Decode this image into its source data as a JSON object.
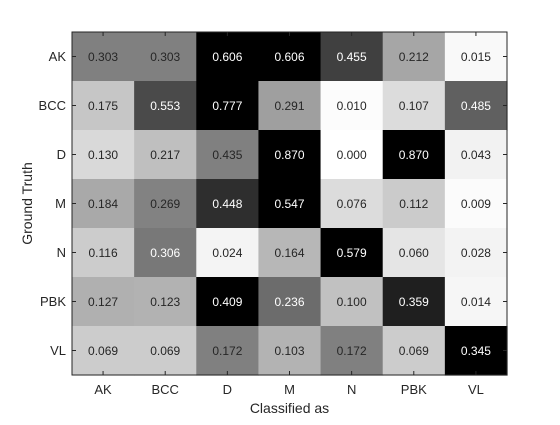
{
  "chart_data": {
    "type": "heatmap",
    "title": "",
    "xlabel": "Classified as",
    "ylabel": "Ground Truth",
    "x_categories": [
      "AK",
      "BCC",
      "D",
      "M",
      "N",
      "PBK",
      "VL"
    ],
    "y_categories": [
      "AK",
      "BCC",
      "D",
      "M",
      "N",
      "PBK",
      "VL"
    ],
    "colormap": "gray-reversed",
    "values": [
      [
        0.303,
        0.303,
        0.606,
        0.606,
        0.455,
        0.212,
        0.015
      ],
      [
        0.175,
        0.553,
        0.777,
        0.291,
        0.01,
        0.107,
        0.485
      ],
      [
        0.13,
        0.217,
        0.435,
        0.87,
        0.0,
        0.87,
        0.043
      ],
      [
        0.184,
        0.269,
        0.448,
        0.547,
        0.076,
        0.112,
        0.009
      ],
      [
        0.116,
        0.306,
        0.024,
        0.164,
        0.579,
        0.06,
        0.028
      ],
      [
        0.127,
        0.123,
        0.409,
        0.236,
        0.1,
        0.359,
        0.014
      ],
      [
        0.069,
        0.069,
        0.172,
        0.103,
        0.172,
        0.069,
        0.345
      ]
    ],
    "value_labels": [
      [
        "0.303",
        "0.303",
        "0.606",
        "0.606",
        "0.455",
        "0.212",
        "0.015"
      ],
      [
        "0.175",
        "0.553",
        "0.777",
        "0.291",
        "0.010",
        "0.107",
        "0.485"
      ],
      [
        "0.130",
        "0.217",
        "0.435",
        "0.870",
        "0.000",
        "0.870",
        "0.043"
      ],
      [
        "0.184",
        "0.269",
        "0.448",
        "0.547",
        "0.076",
        "0.112",
        "0.009"
      ],
      [
        "0.116",
        "0.306",
        "0.024",
        "0.164",
        "0.579",
        "0.060",
        "0.028"
      ],
      [
        "0.127",
        "0.123",
        "0.409",
        "0.236",
        "0.100",
        "0.359",
        "0.014"
      ],
      [
        "0.069",
        "0.069",
        "0.172",
        "0.103",
        "0.172",
        "0.069",
        "0.345"
      ]
    ],
    "grid": false,
    "legend": "none"
  }
}
